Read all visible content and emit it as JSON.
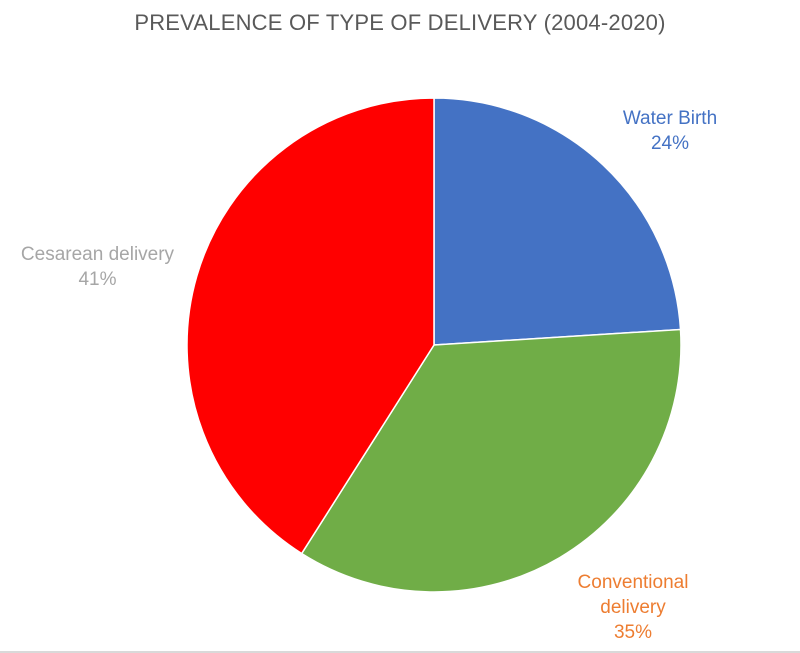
{
  "chart_data": {
    "type": "pie",
    "title": "PREVALENCE OF TYPE OF DELIVERY (2004-2020)",
    "slices": [
      {
        "name": "Water Birth",
        "value": 24,
        "percent_label": "24%",
        "color": "#4472C4",
        "label_color": "#4472C4"
      },
      {
        "name": "Conventional delivery",
        "value": 35,
        "percent_label": "35%",
        "color": "#70AD47",
        "label_color": "#ED7D31"
      },
      {
        "name": "Cesarean delivery",
        "value": 41,
        "percent_label": "41%",
        "color": "#FF0000",
        "label_color": "#A6A6A6"
      }
    ],
    "start_angle_deg": 0,
    "direction": "clockwise",
    "legend": "none",
    "data_labels": "outside"
  }
}
